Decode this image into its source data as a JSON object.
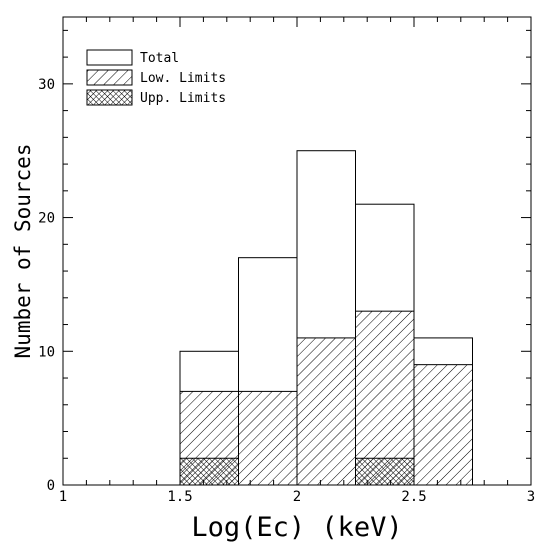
{
  "chart_data": {
    "type": "bar",
    "title": "",
    "xlabel": "Log(Ec) (keV)",
    "ylabel": "Number of Sources",
    "xlim": [
      1,
      3
    ],
    "ylim": [
      0,
      35
    ],
    "xticks": [
      "1",
      "1.5",
      "2",
      "2.5",
      "3"
    ],
    "yticks": [
      "0",
      "10",
      "20",
      "30"
    ],
    "bin_edges": [
      1.5,
      1.75,
      2.0,
      2.25,
      2.5,
      2.75
    ],
    "series": [
      {
        "name": "Total",
        "values": [
          10,
          17,
          25,
          21,
          11
        ],
        "style": "open"
      },
      {
        "name": "Low. Limits",
        "values": [
          7,
          7,
          11,
          13,
          9
        ],
        "style": "diagonal-hatch"
      },
      {
        "name": "Upp. Limits",
        "values": [
          2,
          0,
          0,
          2,
          0
        ],
        "style": "cross-hatch"
      }
    ],
    "legend_position": "top-left",
    "grid": false
  }
}
